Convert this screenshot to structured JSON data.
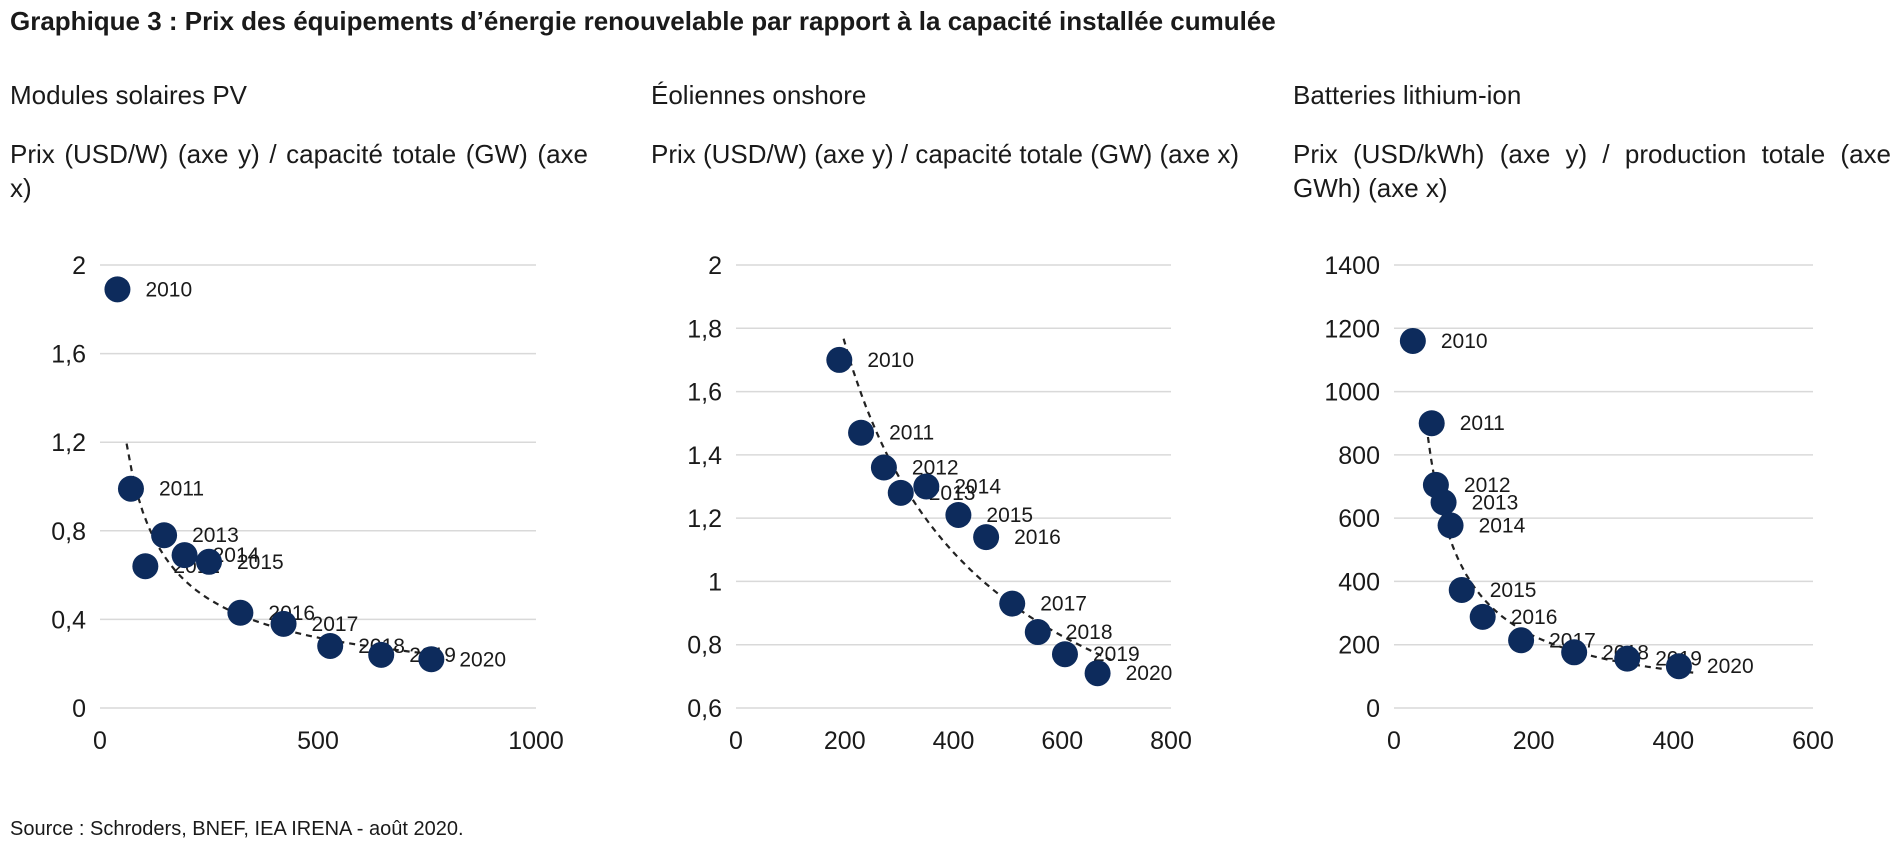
{
  "title": "Graphique 3 : Prix des équipements d’énergie renouvelable par rapport à la capacité installée cumulée",
  "source": "Source : Schroders, BNEF, IEA IRENA - août 2020.",
  "colors": {
    "point": "#0d2b5c",
    "grid": "#d9d9d9",
    "trend": "#222222"
  },
  "chart_data": [
    {
      "type": "scatter",
      "title": "Modules solaires PV",
      "subtitle": "Prix (USD/W) (axe y) / capacité totale (GW) (axe x)",
      "xlim": [
        0,
        1000
      ],
      "ylim": [
        0,
        2
      ],
      "xticks": [
        0,
        500,
        1000
      ],
      "xtick_labels": [
        "0",
        "500",
        "1000"
      ],
      "yticks": [
        0,
        0.4,
        0.8,
        1.2,
        1.6,
        2
      ],
      "ytick_labels": [
        "0",
        "0,4",
        "0,8",
        "1,2",
        "1,6",
        "2"
      ],
      "grid": true,
      "trendline": true,
      "points": [
        {
          "label": "2010",
          "x": 40,
          "y": 1.89
        },
        {
          "label": "2011",
          "x": 71,
          "y": 0.99
        },
        {
          "label": "2012",
          "x": 104,
          "y": 0.64
        },
        {
          "label": "2013",
          "x": 147,
          "y": 0.78
        },
        {
          "label": "2014",
          "x": 194,
          "y": 0.69
        },
        {
          "label": "2015",
          "x": 250,
          "y": 0.66
        },
        {
          "label": "2016",
          "x": 322,
          "y": 0.43
        },
        {
          "label": "2017",
          "x": 421,
          "y": 0.38
        },
        {
          "label": "2018",
          "x": 528,
          "y": 0.28
        },
        {
          "label": "2019",
          "x": 645,
          "y": 0.24
        },
        {
          "label": "2020",
          "x": 760,
          "y": 0.22
        }
      ]
    },
    {
      "type": "scatter",
      "title": "Éoliennes onshore",
      "subtitle": "Prix (USD/W) (axe y) / capacité totale (GW) (axe x)",
      "xlim": [
        0,
        800
      ],
      "ylim": [
        0.6,
        2
      ],
      "xticks": [
        0,
        200,
        400,
        600,
        800
      ],
      "xtick_labels": [
        "0",
        "200",
        "400",
        "600",
        "800"
      ],
      "yticks": [
        0.6,
        0.8,
        1,
        1.2,
        1.4,
        1.6,
        1.8,
        2
      ],
      "ytick_labels": [
        "0,6",
        "0,8",
        "1",
        "1,2",
        "1,4",
        "1,6",
        "1,8",
        "2"
      ],
      "grid": true,
      "trendline": true,
      "points": [
        {
          "label": "2010",
          "x": 190,
          "y": 1.7
        },
        {
          "label": "2011",
          "x": 230,
          "y": 1.47
        },
        {
          "label": "2012",
          "x": 272,
          "y": 1.36
        },
        {
          "label": "2013",
          "x": 303,
          "y": 1.28
        },
        {
          "label": "2014",
          "x": 350,
          "y": 1.3
        },
        {
          "label": "2015",
          "x": 409,
          "y": 1.21
        },
        {
          "label": "2016",
          "x": 460,
          "y": 1.14
        },
        {
          "label": "2017",
          "x": 508,
          "y": 0.93
        },
        {
          "label": "2018",
          "x": 555,
          "y": 0.84
        },
        {
          "label": "2019",
          "x": 605,
          "y": 0.77
        },
        {
          "label": "2020",
          "x": 665,
          "y": 0.71
        }
      ]
    },
    {
      "type": "scatter",
      "title": "Batteries lithium-ion",
      "subtitle": "Prix (USD/kWh) (axe y) / production totale (axe GWh) (axe x)",
      "xlim": [
        0,
        600
      ],
      "ylim": [
        0,
        1400
      ],
      "xticks": [
        0,
        200,
        400,
        600
      ],
      "xtick_labels": [
        "0",
        "200",
        "400",
        "600"
      ],
      "yticks": [
        0,
        200,
        400,
        600,
        800,
        1000,
        1200,
        1400
      ],
      "ytick_labels": [
        "0",
        "200",
        "400",
        "600",
        "800",
        "1000",
        "1200",
        "1400"
      ],
      "grid": true,
      "trendline": true,
      "points": [
        {
          "label": "2010",
          "x": 27,
          "y": 1160
        },
        {
          "label": "2011",
          "x": 54,
          "y": 900
        },
        {
          "label": "2012",
          "x": 60,
          "y": 705
        },
        {
          "label": "2013",
          "x": 71,
          "y": 650
        },
        {
          "label": "2014",
          "x": 81,
          "y": 577
        },
        {
          "label": "2015",
          "x": 97,
          "y": 373
        },
        {
          "label": "2016",
          "x": 127,
          "y": 288
        },
        {
          "label": "2017",
          "x": 182,
          "y": 214
        },
        {
          "label": "2018",
          "x": 258,
          "y": 176
        },
        {
          "label": "2019",
          "x": 334,
          "y": 156
        },
        {
          "label": "2020",
          "x": 408,
          "y": 132
        }
      ]
    }
  ]
}
